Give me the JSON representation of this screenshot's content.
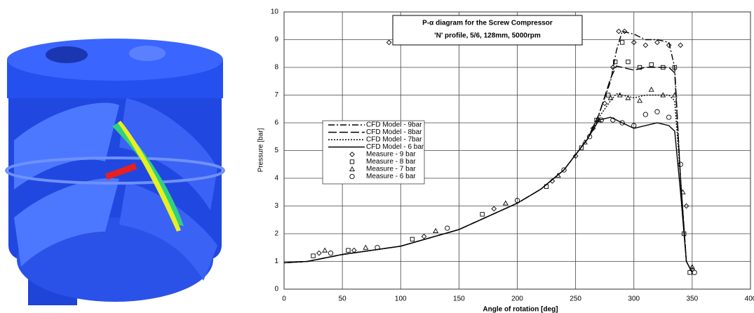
{
  "chart_data": {
    "type": "line",
    "title": "P-α diagram for the Screw Compressor",
    "subtitle": "'N' profile, 5/6, 128mm, 5000rpm",
    "x_label": "Angle of rotation [deg]",
    "y_label": "Pressure [bar]",
    "xlim": [
      0,
      400
    ],
    "xticks": [
      0,
      50,
      100,
      150,
      200,
      250,
      300,
      350,
      400
    ],
    "ylim": [
      0,
      10
    ],
    "yticks": [
      0,
      1,
      2,
      3,
      4,
      5,
      6,
      7,
      8,
      9,
      10
    ],
    "grid": true,
    "legend": "left",
    "series": [
      {
        "name": "CFD Model - 9bar",
        "color": "#000000",
        "dash": "9 3 2 3",
        "x": [
          0,
          20,
          50,
          100,
          150,
          200,
          220,
          240,
          260,
          270,
          280,
          285,
          290,
          300,
          310,
          320,
          330,
          335,
          340,
          345,
          350
        ],
        "values": [
          0.95,
          1.0,
          1.25,
          1.55,
          2.15,
          3.1,
          3.6,
          4.3,
          5.4,
          6.3,
          7.5,
          8.6,
          9.3,
          9.2,
          9.0,
          9.0,
          8.9,
          8.0,
          4.0,
          1.0,
          0.6
        ]
      },
      {
        "name": "CFD Model - 8bar",
        "color": "#000000",
        "dash": "12 4",
        "x": [
          0,
          20,
          50,
          100,
          150,
          200,
          220,
          240,
          260,
          270,
          280,
          285,
          290,
          300,
          310,
          320,
          330,
          335,
          340,
          345,
          350
        ],
        "values": [
          0.95,
          1.0,
          1.25,
          1.55,
          2.15,
          3.1,
          3.6,
          4.3,
          5.4,
          6.3,
          7.6,
          8.05,
          8.0,
          7.9,
          8.0,
          8.0,
          8.0,
          7.8,
          4.0,
          1.0,
          0.6
        ]
      },
      {
        "name": "CFD Model - 7bar",
        "color": "#000000",
        "dash": "2 2",
        "x": [
          0,
          20,
          50,
          100,
          150,
          200,
          220,
          240,
          260,
          270,
          280,
          285,
          290,
          300,
          310,
          320,
          330,
          335,
          340,
          345,
          350
        ],
        "values": [
          0.95,
          1.0,
          1.25,
          1.55,
          2.15,
          3.1,
          3.6,
          4.3,
          5.4,
          6.2,
          6.8,
          7.05,
          7.0,
          6.9,
          7.0,
          7.0,
          7.0,
          6.8,
          4.0,
          1.0,
          0.6
        ]
      },
      {
        "name": "CFD Model - 6 bar",
        "color": "#000000",
        "dash": "none",
        "x": [
          0,
          20,
          50,
          100,
          150,
          200,
          220,
          240,
          260,
          270,
          280,
          285,
          290,
          300,
          310,
          320,
          330,
          335,
          340,
          345,
          350
        ],
        "values": [
          0.95,
          1.0,
          1.25,
          1.55,
          2.15,
          3.1,
          3.6,
          4.3,
          5.4,
          6.1,
          6.2,
          6.1,
          6.0,
          5.8,
          5.9,
          6.0,
          5.9,
          5.7,
          3.5,
          1.0,
          0.6
        ]
      },
      {
        "name": "Measure - 9 bar",
        "color": "#000000",
        "marker": "diamond",
        "x": [
          90,
          30,
          60,
          120,
          180,
          230,
          250,
          265,
          275,
          282,
          287,
          292,
          300,
          310,
          320,
          330,
          340,
          345,
          350
        ],
        "values": [
          8.9,
          1.3,
          1.4,
          1.9,
          2.9,
          3.9,
          4.8,
          5.8,
          6.7,
          8.0,
          9.3,
          9.3,
          8.9,
          8.8,
          8.9,
          8.8,
          8.8,
          3.0,
          0.7
        ]
      },
      {
        "name": "Measure - 8 bar",
        "color": "#000000",
        "marker": "square",
        "x": [
          25,
          55,
          110,
          170,
          225,
          255,
          268,
          278,
          284,
          290,
          295,
          305,
          315,
          325,
          335,
          343,
          348
        ],
        "values": [
          1.2,
          1.4,
          1.8,
          2.7,
          3.7,
          5.1,
          6.1,
          7.0,
          8.2,
          8.9,
          8.2,
          8.0,
          8.1,
          8.0,
          8.0,
          2.0,
          0.6
        ]
      },
      {
        "name": "Measure - 7 bar",
        "color": "#000000",
        "marker": "triangle",
        "x": [
          35,
          70,
          130,
          190,
          235,
          258,
          270,
          280,
          288,
          295,
          305,
          315,
          325,
          335,
          342,
          350
        ],
        "values": [
          1.4,
          1.5,
          2.1,
          3.1,
          4.1,
          5.3,
          6.1,
          6.9,
          7.0,
          6.9,
          6.8,
          7.2,
          7.0,
          7.0,
          3.5,
          0.8
        ]
      },
      {
        "name": "Measure - 6 bar",
        "color": "#000000",
        "marker": "circle",
        "x": [
          40,
          80,
          140,
          200,
          240,
          262,
          272,
          282,
          290,
          300,
          310,
          320,
          330,
          340,
          352
        ],
        "values": [
          1.3,
          1.5,
          2.2,
          3.2,
          4.3,
          5.5,
          6.1,
          6.1,
          6.0,
          5.9,
          6.3,
          6.4,
          6.2,
          4.5,
          0.6
        ]
      }
    ]
  }
}
